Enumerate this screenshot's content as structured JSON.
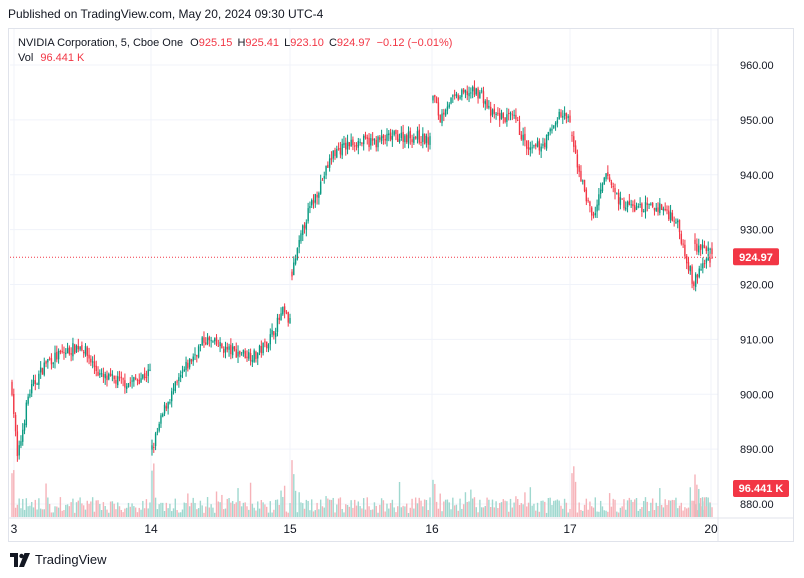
{
  "published_text": "Published on TradingView.com, May 20, 2024 09:30 UTC-4",
  "legend": {
    "symbol": "NVIDIA Corporation, 5, Cboe One",
    "open_label": "O",
    "open_value": "925.15",
    "high_label": "H",
    "high_value": "925.41",
    "low_label": "L",
    "low_value": "923.10",
    "close_label": "C",
    "close_value": "924.97",
    "change": "−0.12 (−0.01%)",
    "vol_label": "Vol",
    "vol_value": "96.441 K"
  },
  "footer": {
    "brand": "TradingView",
    "logo_icon": "tradingview-logo-icon"
  },
  "colors": {
    "up": "#089981",
    "down": "#f23645",
    "up_vol": "#9fd8cf",
    "down_vol": "#f6b2b8",
    "grid": "#f0f3fa",
    "text": "#131722"
  },
  "chart_data": {
    "type": "candlestick",
    "symbol": "NVIDIA Corporation",
    "interval": "5",
    "exchange": "Cboe One",
    "ylim": [
      876,
      968
    ],
    "y_ticks": [
      "960.00",
      "950.00",
      "940.00",
      "930.00",
      "920.00",
      "910.00",
      "900.00",
      "890.00",
      "880.00"
    ],
    "x_ticks": [
      "3",
      "14",
      "15",
      "16",
      "17",
      "20"
    ],
    "price_line": {
      "value": 924.97,
      "label": "924.97"
    },
    "volume_label": "96.441 K",
    "sessions": [
      {
        "day": "13",
        "path": [
          [
            0,
            901
          ],
          [
            0.04,
            888
          ],
          [
            0.12,
            900
          ],
          [
            0.25,
            906
          ],
          [
            0.5,
            909
          ],
          [
            0.65,
            903
          ],
          [
            0.85,
            902
          ],
          [
            1,
            904
          ]
        ]
      },
      {
        "day": "14",
        "path": [
          [
            0,
            890
          ],
          [
            0.1,
            898
          ],
          [
            0.25,
            905
          ],
          [
            0.38,
            910
          ],
          [
            0.55,
            908
          ],
          [
            0.75,
            907
          ],
          [
            0.85,
            910
          ],
          [
            0.95,
            915
          ],
          [
            1,
            913
          ]
        ]
      },
      {
        "day": "15",
        "path": [
          [
            0,
            922
          ],
          [
            0.1,
            932
          ],
          [
            0.3,
            944
          ],
          [
            0.45,
            946
          ],
          [
            0.6,
            946
          ],
          [
            0.75,
            947
          ],
          [
            0.9,
            947
          ],
          [
            1,
            946
          ]
        ]
      },
      {
        "day": "16",
        "path": [
          [
            0,
            955
          ],
          [
            0.05,
            950
          ],
          [
            0.1,
            953
          ],
          [
            0.25,
            955
          ],
          [
            0.35,
            955
          ],
          [
            0.42,
            951
          ],
          [
            0.6,
            950
          ],
          [
            0.7,
            944
          ],
          [
            0.82,
            946
          ],
          [
            0.92,
            951
          ],
          [
            1,
            950
          ]
        ]
      },
      {
        "day": "17",
        "path": [
          [
            0,
            946
          ],
          [
            0.08,
            938
          ],
          [
            0.15,
            932
          ],
          [
            0.2,
            936
          ],
          [
            0.25,
            940
          ],
          [
            0.35,
            935
          ],
          [
            0.45,
            934
          ],
          [
            0.55,
            934
          ],
          [
            0.65,
            934
          ],
          [
            0.75,
            932
          ],
          [
            0.82,
            926
          ],
          [
            0.88,
            920
          ],
          [
            0.93,
            923
          ],
          [
            1,
            925
          ]
        ]
      },
      {
        "day": "20",
        "path": [
          [
            0,
            927
          ],
          [
            0.5,
            927
          ],
          [
            1,
            924.97
          ]
        ]
      }
    ]
  }
}
